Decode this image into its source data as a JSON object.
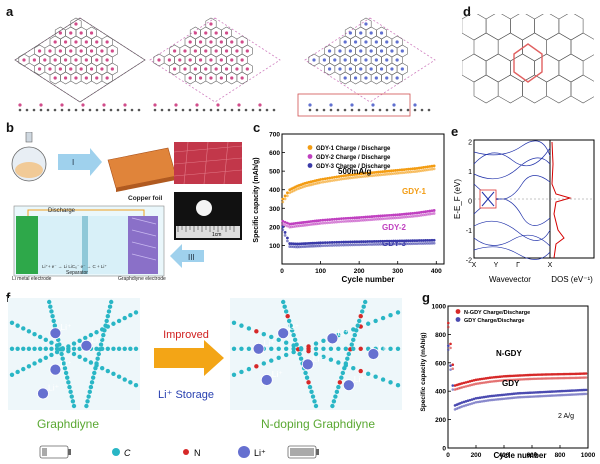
{
  "panel_labels": {
    "a": "a",
    "b": "b",
    "c": "c",
    "d": "d",
    "e": "e",
    "f": "f",
    "g": "g"
  },
  "panel_b": {
    "step_1": "I",
    "step_2": "II",
    "step_3": "III",
    "copper_foil": "Copper foil",
    "discharge_arrow": "Discharge",
    "li_metal": "Li metal electrode",
    "separator": "Separator",
    "graphdiyne": "Graphdiyne electrode",
    "reaction": "Li⁺+ e⁻ → Li   LiC₆⁻ e⁻ → C + Li⁺",
    "ruler": "1cm"
  },
  "colors": {
    "gdy1": "#f39c12",
    "gdy2": "#c040c0",
    "gdy3": "#3a3aa8",
    "ngdy": "#d62828",
    "gdy": "#4a4ab0",
    "dos": "#d40000",
    "band": "#2233aa",
    "cyan": "#29b6c5",
    "hex_red": "#e06060"
  },
  "panel_e": {
    "ylabel": "E-E_F (eV)",
    "xlabel": "Wavevector",
    "dos_label": "DOS (eV⁻¹)",
    "kpoints": [
      "X",
      "Y",
      "Γ",
      "X"
    ],
    "yticks": [
      "2",
      "1",
      "0",
      "-1",
      "-2"
    ]
  },
  "panel_f": {
    "left_title": "Graphdiyne",
    "right_title": "N-doping Graphdiyne",
    "improved": "Improved",
    "storage": "Li⁺ Storage",
    "li": "Li⁺",
    "legend_c": "C",
    "legend_n": "N",
    "legend_li": "Li⁺"
  },
  "chart_data": [
    {
      "type": "scatter",
      "panel": "c",
      "xlabel": "Cycle number",
      "ylabel": "Specific capacity (mAh/g)",
      "xlim": [
        0,
        420
      ],
      "ylim": [
        0,
        700
      ],
      "xticks": [
        0,
        100,
        200,
        300,
        400
      ],
      "yticks": [
        100,
        200,
        300,
        400,
        500,
        600,
        700
      ],
      "annotation": "500mA/g",
      "legend_position": "top",
      "legend": [
        "GDY-1 Charge / Discharge",
        "GDY-2 Charge / Discharge",
        "GDY-3 Charge / Discharge"
      ],
      "series": [
        {
          "name": "GDY-1",
          "x": [
            2,
            20,
            40,
            60,
            80,
            100,
            130,
            160,
            200,
            250,
            300,
            350,
            400
          ],
          "y": [
            350,
            400,
            420,
            435,
            445,
            455,
            465,
            475,
            485,
            495,
            505,
            515,
            530
          ]
        },
        {
          "name": "GDY-2",
          "x": [
            2,
            20,
            40,
            60,
            80,
            100,
            130,
            160,
            200,
            250,
            300,
            350,
            400
          ],
          "y": [
            230,
            215,
            220,
            225,
            230,
            235,
            240,
            245,
            250,
            258,
            265,
            275,
            290
          ]
        },
        {
          "name": "GDY-3",
          "x": [
            2,
            20,
            40,
            60,
            80,
            100,
            130,
            160,
            200,
            250,
            300,
            350,
            400
          ],
          "y": [
            200,
            110,
            108,
            110,
            112,
            114,
            116,
            118,
            120,
            122,
            124,
            126,
            128
          ]
        }
      ],
      "series_labels": [
        "GDY-1",
        "GDY-2",
        "GDY-3"
      ]
    },
    {
      "type": "scatter",
      "panel": "g",
      "xlabel": "Cycle number",
      "ylabel": "Specific capacity (mAh/g)",
      "xlim": [
        0,
        1000
      ],
      "ylim": [
        0,
        1000
      ],
      "xticks": [
        0,
        200,
        400,
        600,
        800,
        1000
      ],
      "yticks": [
        0,
        200,
        400,
        600,
        800,
        1000
      ],
      "annotation": "2 A/g",
      "legend_position": "top",
      "legend": [
        "N-GDY Charge/Discharge",
        "GDY Charge/Discharge"
      ],
      "series": [
        {
          "name": "N-GDY",
          "x": [
            2,
            50,
            100,
            200,
            300,
            400,
            500,
            600,
            700,
            800,
            900,
            1000
          ],
          "y": [
            880,
            440,
            455,
            480,
            495,
            505,
            510,
            515,
            518,
            520,
            522,
            525
          ]
        },
        {
          "name": "GDY",
          "x": [
            2,
            50,
            100,
            200,
            300,
            400,
            500,
            600,
            700,
            800,
            900,
            1000
          ],
          "y": [
            720,
            300,
            320,
            350,
            365,
            375,
            385,
            390,
            395,
            400,
            405,
            410
          ]
        }
      ],
      "series_labels": [
        "N-GDY",
        "GDY"
      ]
    }
  ]
}
